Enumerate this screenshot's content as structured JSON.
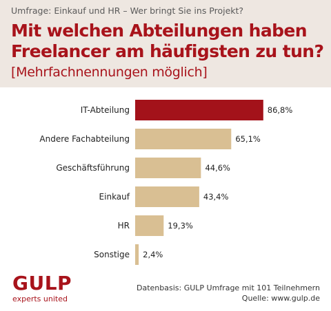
{
  "header": {
    "supertitle": "Umfrage: Einkauf und HR – Wer bringt Sie ins Projekt?",
    "title_line1": "Mit welchen Abteilungen haben",
    "title_line2": "Freelancer am häufigsten zu tun?",
    "subtitle": "[Mehrfachnennungen möglich]"
  },
  "colors": {
    "highlight_bar": "#a3121a",
    "bar": "#d9bf93",
    "header_bg": "#eee7e1",
    "title": "#a8131b"
  },
  "chart_data": {
    "type": "bar",
    "orientation": "horizontal",
    "categories": [
      "IT-Abteilung",
      "Andere Fachabteilung",
      "Geschäftsführung",
      "Einkauf",
      "HR",
      "Sonstige"
    ],
    "values": [
      86.8,
      65.1,
      44.6,
      43.4,
      19.3,
      2.4
    ],
    "value_labels": [
      "86,8%",
      "65,1%",
      "44,6%",
      "43,4%",
      "19,3%",
      "2,4%"
    ],
    "highlight_index": 0,
    "xlim": [
      0,
      100
    ],
    "grid": false
  },
  "footer": {
    "logo_text": "GULP",
    "logo_tagline": "experts united",
    "source_line1": "Datenbasis: GULP Umfrage mit 101 Teilnehmern",
    "source_line2": "Quelle: www.gulp.de"
  }
}
